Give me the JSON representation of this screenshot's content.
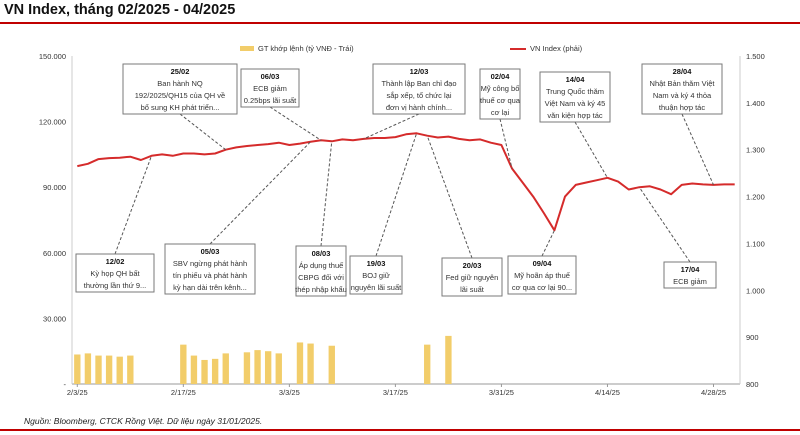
{
  "title": "VN Index, tháng 02/2025 - 04/2025",
  "source": "Nguồn: Bloomberg, CTCK Rồng Việt. Dữ liệu ngày 31/01/2025.",
  "colors": {
    "bar": "#f2cd6a",
    "line": "#d52b2b",
    "accent": "#c00000",
    "box_border": "#7a7a7a",
    "leader": "#555555"
  },
  "chart_data": {
    "type": "bar+line",
    "legend": {
      "bar": "GT khớp lệnh (tỷ VNĐ - Trái)",
      "line": "VN Index (phải)",
      "position": "top"
    },
    "y_left": {
      "ticks": [
        "-",
        "30.000",
        "60.000",
        "90.000",
        "120.000",
        "150.000"
      ],
      "range": [
        0,
        150000
      ]
    },
    "y_right": {
      "ticks": [
        "800",
        "900",
        "1.000",
        "1.100",
        "1.200",
        "1.300",
        "1.400",
        "1.500"
      ],
      "range": [
        800,
        1500
      ]
    },
    "x_ticks": [
      {
        "label": "2/3/25",
        "index": 0
      },
      {
        "label": "2/17/25",
        "index": 10
      },
      {
        "label": "3/3/25",
        "index": 20
      },
      {
        "label": "3/17/25",
        "index": 30
      },
      {
        "label": "3/31/25",
        "index": 40
      },
      {
        "label": "4/14/25",
        "index": 50
      },
      {
        "label": "4/28/25",
        "index": 60
      }
    ],
    "volume": [
      13500,
      14000,
      13000,
      13000,
      12500,
      13000,
      null,
      null,
      null,
      null,
      18000,
      13000,
      11000,
      11500,
      14000,
      null,
      14500,
      15500,
      15000,
      14000,
      null,
      19000,
      18500,
      null,
      17500,
      null,
      null,
      null,
      null,
      null,
      null,
      null,
      null,
      18000,
      null,
      22000,
      null,
      null,
      null,
      null,
      null,
      null,
      null,
      null,
      null,
      null,
      null,
      null,
      null,
      null,
      null,
      null,
      null,
      null,
      null,
      null,
      null,
      null,
      null,
      null,
      null,
      null,
      null
    ],
    "vnindex": [
      1265,
      1270,
      1280,
      1282,
      1283,
      1285,
      1278,
      1287,
      1290,
      1287,
      1292,
      1292,
      1290,
      1292,
      1300,
      1305,
      1308,
      1310,
      1312,
      1315,
      1310,
      1313,
      1317,
      1320,
      1318,
      1322,
      1320,
      1323,
      1325,
      1325,
      1327,
      1333,
      1335,
      1330,
      1326,
      1328,
      1323,
      1320,
      1322,
      1315,
      1310,
      1260,
      1230,
      1200,
      1165,
      1128,
      1200,
      1225,
      1230,
      1235,
      1240,
      1232,
      1215,
      1220,
      1222,
      1215,
      1205,
      1225,
      1228,
      1226,
      1225,
      1226,
      1226
    ],
    "annotations": [
      {
        "date": "25/02",
        "lines": [
          "Ban hành NQ",
          "192/2025/QH15 của QH về",
          "bổ sung KH phát triển..."
        ],
        "index": 14
      },
      {
        "date": "06/03",
        "lines": [
          "ECB giảm",
          "0.25bps lãi suất"
        ],
        "index": 23
      },
      {
        "date": "12/03",
        "lines": [
          "Thành lập Ban chỉ đạo",
          "sắp xếp, tổ chức lại",
          "đơn vị hành chính..."
        ],
        "index": 27
      },
      {
        "date": "02/04",
        "lines": [
          "Mỹ công bố",
          "thuế cơ qua",
          "cơ lại"
        ],
        "index": 41
      },
      {
        "date": "14/04",
        "lines": [
          "Trung Quốc  thăm",
          "Việt Nam  và ký 45",
          "văn kiện hợp tác"
        ],
        "index": 50
      },
      {
        "date": "28/04",
        "lines": [
          "Nhật Bản thăm Việt",
          "Nam và ký 4 thỏa",
          "thuận hợp tác"
        ],
        "index": 60
      },
      {
        "date": "12/02",
        "lines": [
          "Kỳ họp QH bất",
          "thường lần thứ 9..."
        ],
        "index": 7
      },
      {
        "date": "05/03",
        "lines": [
          "SBV ngừng phát hành",
          "tín phiếu và phát hành",
          "kỳ hạn dài trên kênh..."
        ],
        "index": 22
      },
      {
        "date": "08/03",
        "lines": [
          "Áp dụng thuế",
          "CBPG đối với",
          "thép nhập khẩu"
        ],
        "index": 24
      },
      {
        "date": "19/03",
        "lines": [
          "BOJ giữ",
          "nguyên lãi suất"
        ],
        "index": 32
      },
      {
        "date": "20/03",
        "lines": [
          "Fed giữ nguyên",
          "lãi suất"
        ],
        "index": 33
      },
      {
        "date": "09/04",
        "lines": [
          "Mỹ hoãn áp thuế",
          "cơ qua cơ lại 90..."
        ],
        "index": 45
      },
      {
        "date": "17/04",
        "lines": [
          "ECB giảm"
        ],
        "index": 53
      }
    ]
  }
}
